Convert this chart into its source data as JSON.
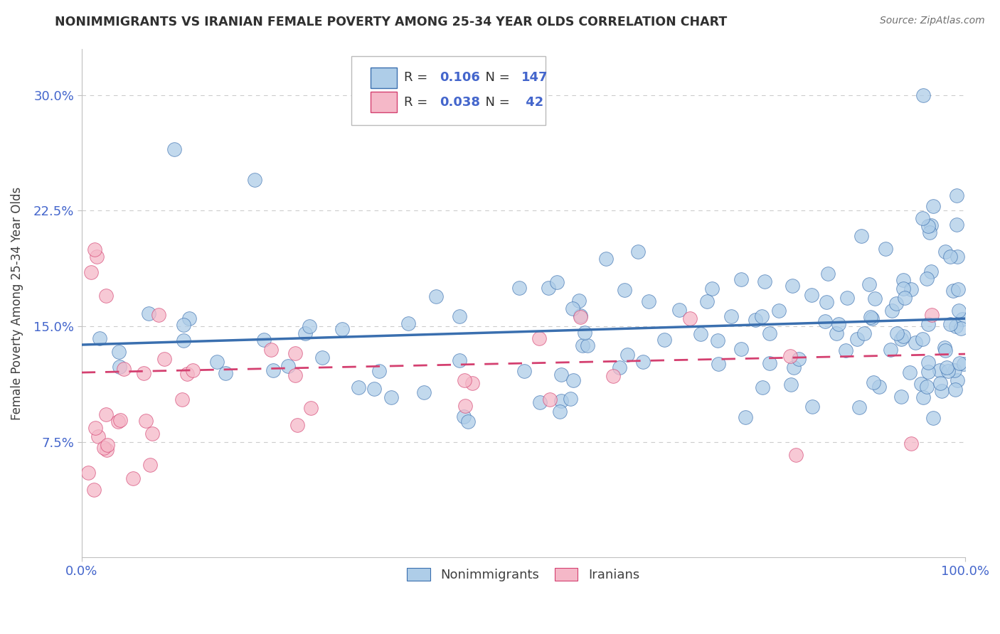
{
  "title": "NONIMMIGRANTS VS IRANIAN FEMALE POVERTY AMONG 25-34 YEAR OLDS CORRELATION CHART",
  "source": "Source: ZipAtlas.com",
  "ylabel": "Female Poverty Among 25-34 Year Olds",
  "xlim": [
    0,
    100
  ],
  "ylim": [
    0,
    33
  ],
  "yticks": [
    7.5,
    15.0,
    22.5,
    30.0
  ],
  "xticks": [
    0,
    100
  ],
  "xtick_labels": [
    "0.0%",
    "100.0%"
  ],
  "ytick_labels": [
    "7.5%",
    "15.0%",
    "22.5%",
    "30.0%"
  ],
  "R_nonimm": 0.106,
  "N_nonimm": 147,
  "R_iranian": 0.038,
  "N_iranian": 42,
  "color_nonimm": "#aecde8",
  "color_iranian": "#f5b8c8",
  "line_color_nonimm": "#3a6faf",
  "line_color_iranian": "#d44070",
  "background_color": "#ffffff",
  "grid_color": "#cccccc",
  "legend_labels": [
    "Nonimmigrants",
    "Iranians"
  ],
  "title_color": "#303030",
  "source_color": "#707070",
  "tick_color": "#4466cc"
}
